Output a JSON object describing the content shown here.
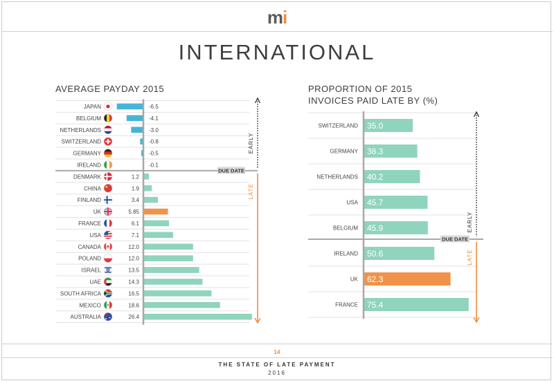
{
  "header": {
    "logo_main": "m",
    "logo_accent": "i",
    "title": "INTERNATIONAL"
  },
  "footer": {
    "page_number": "14",
    "line1": "THE STATE OF LATE PAYMENT",
    "line2": "2016"
  },
  "colors": {
    "bar": "#8fd4bc",
    "highlight": "#f0934a",
    "negative": "#47b4d6",
    "axis": "#a8a8a8",
    "late": "#f08c3c",
    "early": "#333333"
  },
  "chart_data": [
    {
      "type": "bar",
      "orientation": "horizontal",
      "title": "AVERAGE PAYDAY 2015",
      "categories": [
        "JAPAN",
        "BELGIUM",
        "NETHERLANDS",
        "SWITZERLAND",
        "GERMANY",
        "IRELAND",
        "DENMARK",
        "CHINA",
        "FINLAND",
        "UK",
        "FRANCE",
        "USA",
        "CANADA",
        "POLAND",
        "ISRAEL",
        "UAE",
        "SOUTH AFRICA",
        "MEXICO",
        "AUSTRALIA"
      ],
      "values": [
        -6.5,
        -4.1,
        -3.0,
        -0.8,
        -0.5,
        -0.1,
        1.2,
        1.9,
        3.4,
        5.85,
        6.1,
        7.1,
        12.0,
        12.0,
        13.5,
        14.3,
        16.5,
        18.6,
        26.4
      ],
      "value_labels": [
        "-6.5",
        "-4.1",
        "-3.0",
        "-0.8",
        "-0.5",
        "-0.1",
        "1.2",
        "1.9",
        "3.4",
        "5.85",
        "6.1",
        "7.1",
        "12.0",
        "12.0",
        "13.5",
        "14.3",
        "16.5",
        "18.6",
        "26.4"
      ],
      "highlight": "UK",
      "flags": [
        "flag-japan-icon",
        "flag-belgium-icon",
        "flag-netherlands-icon",
        "flag-switzerland-icon",
        "flag-germany-icon",
        "flag-ireland-icon",
        "flag-denmark-icon",
        "flag-china-icon",
        "flag-finland-icon",
        "flag-uk-icon",
        "flag-france-icon",
        "flag-usa-icon",
        "flag-canada-icon",
        "flag-poland-icon",
        "flag-israel-icon",
        "flag-uae-icon",
        "flag-south-africa-icon",
        "flag-mexico-icon",
        "flag-australia-icon"
      ],
      "divider_label": "DUE DATE",
      "early_label": "EARLY",
      "late_label": "LATE",
      "grid": true
    },
    {
      "type": "bar",
      "orientation": "horizontal",
      "title_lines": [
        "PROPORTION OF 2015",
        "INVOICES PAID LATE BY (%)"
      ],
      "categories": [
        "SWITZERLAND",
        "GERMANY",
        "NETHERLANDS",
        "USA",
        "BELGIUM",
        "IRELAND",
        "UK",
        "FRANCE"
      ],
      "values": [
        35.0,
        38.3,
        40.2,
        45.7,
        45.9,
        50.6,
        62.3,
        75.4
      ],
      "value_labels": [
        "35.0",
        "38.3",
        "40.2",
        "45.7",
        "45.9",
        "50.6",
        "62.3",
        "75.4"
      ],
      "highlight": "UK",
      "divider_label": "DUE DATE",
      "early_label": "EARLY",
      "late_label": "LATE",
      "grid": true
    }
  ]
}
